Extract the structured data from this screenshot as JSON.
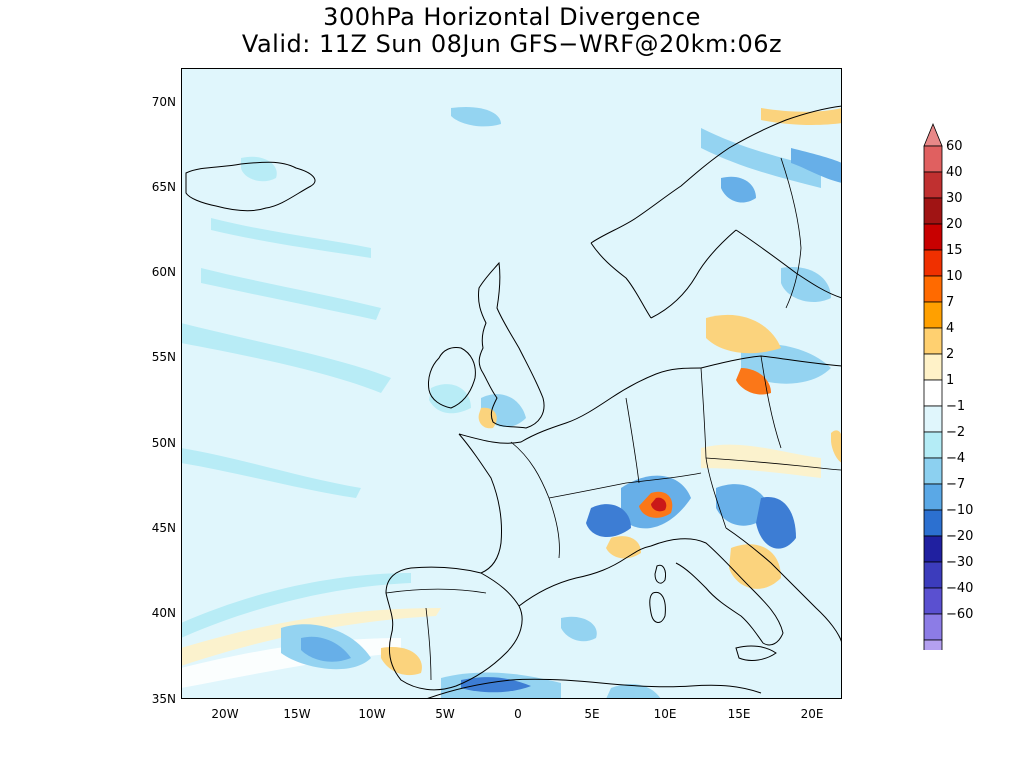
{
  "title": {
    "line1": "300hPa Horizontal Divergence",
    "line2": "Valid: 11Z Sun 08Jun GFS−WRF@20km:06z"
  },
  "map": {
    "region": "Europe / North Atlantic",
    "projection": "latitude-longitude",
    "lat_ticks": [
      "70N",
      "65N",
      "60N",
      "55N",
      "50N",
      "45N",
      "40N",
      "35N"
    ],
    "lon_ticks": [
      "20W",
      "15W",
      "10W",
      "5W",
      "0",
      "5E",
      "10E",
      "15E",
      "20E"
    ],
    "lat_range": [
      35,
      72
    ],
    "lon_range": [
      -23,
      22
    ]
  },
  "colorbar": {
    "labels": [
      "60",
      "40",
      "30",
      "20",
      "15",
      "10",
      "7",
      "4",
      "2",
      "1",
      "−1",
      "−2",
      "−4",
      "−7",
      "−10",
      "−20",
      "−30",
      "−40",
      "−60"
    ],
    "colors": [
      "#e88888",
      "#e06060",
      "#c03030",
      "#a01414",
      "#c80000",
      "#f03000",
      "#ff6a00",
      "#ffa000",
      "#ffd070",
      "#fff2c8",
      "#ffffff",
      "#e0f6fc",
      "#b4ecf6",
      "#8cd0f0",
      "#5aa8e6",
      "#2c70d0",
      "#2020a0",
      "#3c3cbc",
      "#5a50d0",
      "#8c7ce6",
      "#b4a0f0",
      "#dcd0f8"
    ]
  }
}
